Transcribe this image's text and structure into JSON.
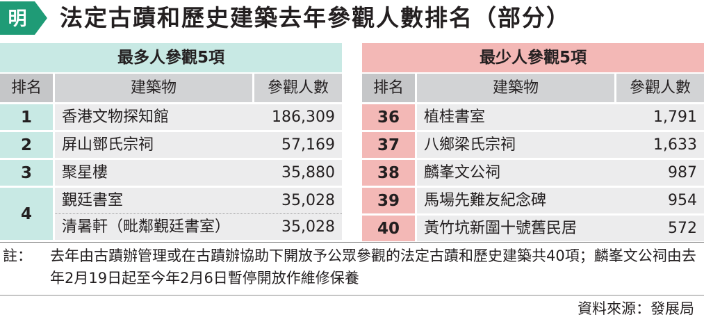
{
  "header": {
    "logo_text": "明",
    "title": "法定古蹟和歷史建築去年參觀人數排名（部分）"
  },
  "colors": {
    "green_accent": "#c8e9e4",
    "pink_accent": "#f3b8b6",
    "logo_green": "#1f9b76"
  },
  "most_visited": {
    "title": "最多人參觀5項",
    "columns": [
      "排名",
      "建築物",
      "參觀人數"
    ],
    "groups": [
      {
        "rank": "1",
        "rows": [
          {
            "name": "香港文物探知館",
            "visitors": "186,309"
          }
        ]
      },
      {
        "rank": "2",
        "rows": [
          {
            "name": "屏山鄧氏宗祠",
            "visitors": "57,169"
          }
        ]
      },
      {
        "rank": "3",
        "rows": [
          {
            "name": "聚星樓",
            "visitors": "35,880"
          }
        ]
      },
      {
        "rank": "4",
        "rows": [
          {
            "name": "覲廷書室",
            "visitors": "35,028"
          },
          {
            "name": "清暑軒（毗鄰覲廷書室）",
            "visitors": "35,028"
          }
        ]
      }
    ]
  },
  "least_visited": {
    "title": "最少人參觀5項",
    "columns": [
      "排名",
      "建築物",
      "參觀人數"
    ],
    "groups": [
      {
        "rank": "36",
        "rows": [
          {
            "name": "植桂書室",
            "visitors": "1,791"
          }
        ]
      },
      {
        "rank": "37",
        "rows": [
          {
            "name": "八鄉梁氏宗祠",
            "visitors": "1,633"
          }
        ]
      },
      {
        "rank": "38",
        "rows": [
          {
            "name": "麟峯文公祠",
            "visitors": "987"
          }
        ]
      },
      {
        "rank": "39",
        "rows": [
          {
            "name": "馬場先難友紀念碑",
            "visitors": "954"
          }
        ]
      },
      {
        "rank": "40",
        "rows": [
          {
            "name": "黃竹坑新圍十號舊民居",
            "visitors": "572"
          }
        ]
      }
    ]
  },
  "note": {
    "label": "註：",
    "text": "去年由古蹟辦管理或在古蹟辦協助下開放予公眾參觀的法定古蹟和歷史建築共40項；麟峯文公祠由去年2月19日起至今年2月6日暫停開放作維修保養"
  },
  "source": "資料來源：發展局"
}
